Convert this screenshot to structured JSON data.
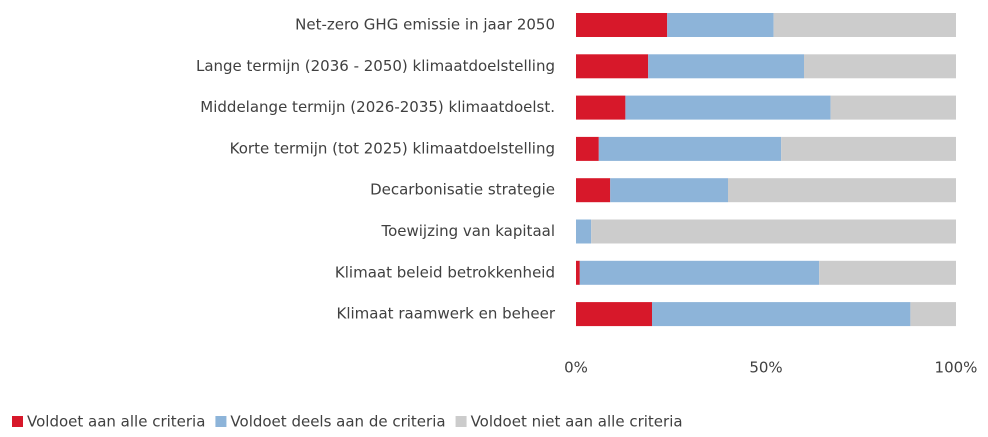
{
  "chart_data": {
    "type": "stacked_barh",
    "categories": [
      "Net-zero GHG emissie in jaar 2050",
      "Lange termijn (2036 - 2050) klimaatdoelstelling",
      "Middelange termijn (2026-2035) klimaatdoelst.",
      "Korte termijn (tot 2025) klimaatdoelstelling",
      "Decarbonisatie strategie",
      "Toewijzing van kapitaal",
      "Klimaat beleid betrokkenheid",
      "Klimaat raamwerk en beheer"
    ],
    "series": [
      {
        "name": "Voldoet aan alle criteria",
        "color": "#d7182a",
        "values": [
          24,
          19,
          13,
          6,
          9,
          0,
          1,
          20
        ]
      },
      {
        "name": "Voldoet deels aan de criteria",
        "color": "#8db4d9",
        "values": [
          28,
          41,
          54,
          48,
          31,
          4,
          63,
          68
        ]
      },
      {
        "name": "Voldoet niet aan alle criteria",
        "color": "#cccccc",
        "values": [
          48,
          40,
          33,
          46,
          60,
          96,
          36,
          12
        ]
      }
    ],
    "xlim": [
      0,
      100
    ],
    "xticks": [
      {
        "value": 0,
        "label": "0%"
      },
      {
        "value": 50,
        "label": "50%"
      },
      {
        "value": 100,
        "label": "100%"
      }
    ],
    "legend": "bottom"
  }
}
